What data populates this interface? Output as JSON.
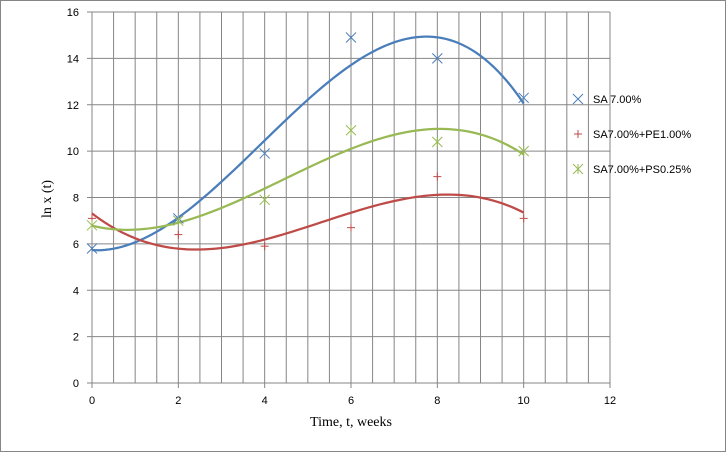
{
  "chart_data": {
    "type": "scatter",
    "title": "",
    "xlabel": "Time, t, weeks",
    "ylabel": "ln x (t)",
    "xlim": [
      0,
      12
    ],
    "ylim": [
      0,
      16
    ],
    "xticks": [
      0,
      2,
      4,
      6,
      8,
      10,
      12
    ],
    "yticks": [
      0,
      2,
      4,
      6,
      8,
      10,
      12,
      14,
      16
    ],
    "grid": true,
    "legend_position": "right",
    "series": [
      {
        "name": "SA 7.00%",
        "color": "#4a7ebb",
        "marker": "x",
        "x": [
          0,
          2,
          4,
          6,
          8,
          10
        ],
        "y": [
          5.8,
          7.1,
          9.9,
          14.9,
          14.0,
          12.3
        ],
        "trendline": "polynomial"
      },
      {
        "name": "SA7.00%+PE1.00%",
        "color": "#be4b48",
        "marker": "plus",
        "x": [
          0,
          2,
          4,
          6,
          8,
          10
        ],
        "y": [
          7.1,
          6.4,
          5.9,
          6.7,
          8.9,
          7.1
        ],
        "trendline": "polynomial"
      },
      {
        "name": "SA7.00%+PS0.25%",
        "color": "#98b954",
        "marker": "star",
        "x": [
          0,
          2,
          4,
          6,
          8,
          10
        ],
        "y": [
          6.8,
          7.0,
          7.9,
          10.9,
          10.4,
          10.0
        ],
        "trendline": "polynomial"
      }
    ]
  }
}
